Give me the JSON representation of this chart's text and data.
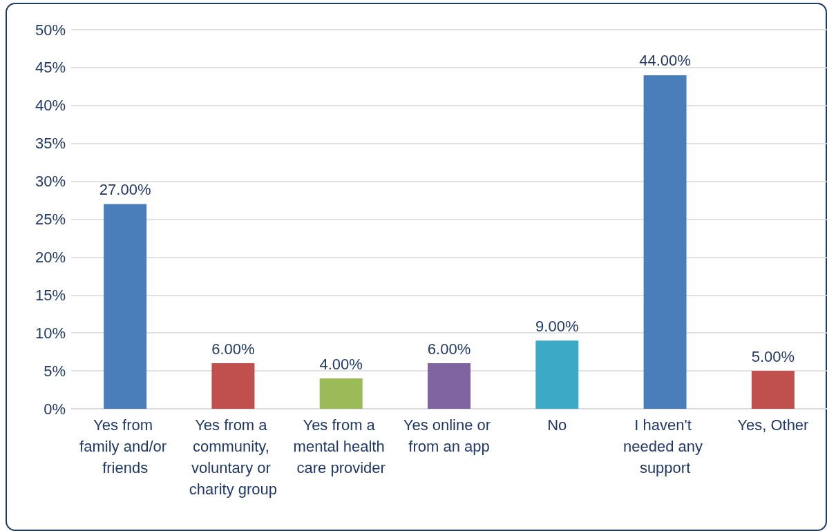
{
  "chart_data": {
    "type": "bar",
    "categories": [
      "Yes from family and/or friends",
      "Yes from a community, voluntary or charity group",
      "Yes from a mental health care provider",
      "Yes online or from an app",
      "No",
      "I haven't needed any support",
      "Yes, Other"
    ],
    "values": [
      27,
      6,
      4,
      6,
      9,
      44,
      5
    ],
    "colors": [
      "#4a7ebb",
      "#c0504d",
      "#9bbb59",
      "#8064a2",
      "#3caac4",
      "#4a7ebb",
      "#c0504d"
    ],
    "value_labels": [
      "27.00%",
      "6.00%",
      "4.00%",
      "6.00%",
      "9.00%",
      "44.00%",
      "5.00%"
    ],
    "ylim": [
      0,
      50
    ],
    "yticks": [
      {
        "value": 0,
        "label": "0%"
      },
      {
        "value": 5,
        "label": "5%"
      },
      {
        "value": 10,
        "label": "10%"
      },
      {
        "value": 15,
        "label": "15%"
      },
      {
        "value": 20,
        "label": "20%"
      },
      {
        "value": 25,
        "label": "25%"
      },
      {
        "value": 30,
        "label": "30%"
      },
      {
        "value": 35,
        "label": "35%"
      },
      {
        "value": 40,
        "label": "40%"
      },
      {
        "value": 45,
        "label": "45%"
      },
      {
        "value": 50,
        "label": "50%"
      }
    ],
    "grid": "y"
  }
}
